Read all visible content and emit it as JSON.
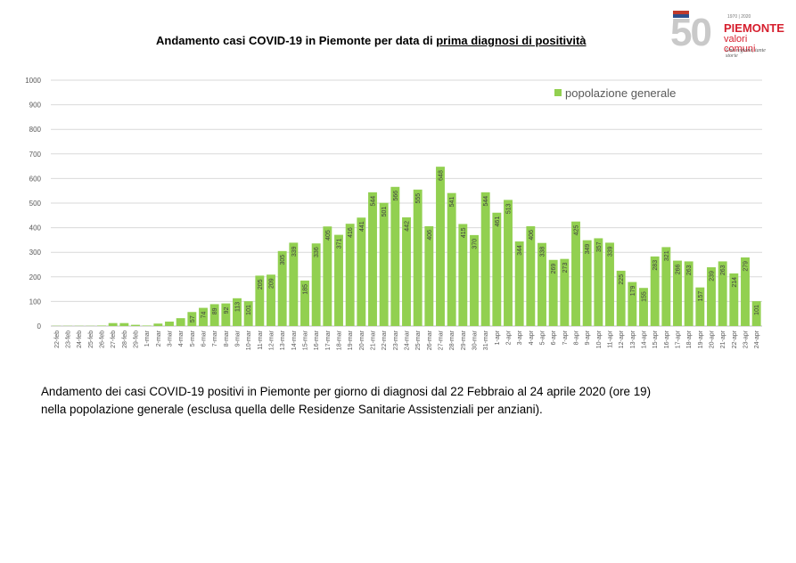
{
  "title_plain": "Andamento casi COVID-19 in Piemonte per data di ",
  "title_underlined": "prima diagnosi di positività",
  "logo": {
    "number": "50",
    "years": "1970 | 2020",
    "brand": "PIEMONTE",
    "brand_sub": "valori comuni",
    "tagline": "Una regione, tante storie"
  },
  "caption_line1": "Andamento dei casi COVID-19 positivi in Piemonte per giorno di diagnosi dal 22 Febbraio al 24 aprile 2020 (ore 19)",
  "caption_line2": "nella popolazione generale (esclusa quella delle Residenze Sanitarie Assistenziali per anziani).",
  "colors": {
    "bar": "#92d050",
    "grid": "#d9d9d9",
    "text": "#595959"
  },
  "chart_data": {
    "type": "bar",
    "ylim": [
      0,
      1000
    ],
    "yticks": [
      0,
      100,
      200,
      300,
      400,
      500,
      600,
      700,
      800,
      900,
      1000
    ],
    "grid": true,
    "legend_position": "top-right",
    "series": [
      {
        "name": "popolazione generale"
      }
    ],
    "categories": [
      "22-feb",
      "23-feb",
      "24-feb",
      "25-feb",
      "26-feb",
      "27-feb",
      "28-feb",
      "29-feb",
      "1-mar",
      "2-mar",
      "3-mar",
      "4-mar",
      "5-mar",
      "6-mar",
      "7-mar",
      "8-mar",
      "9-mar",
      "10-mar",
      "11-mar",
      "12-mar",
      "13-mar",
      "14-mar",
      "15-mar",
      "16-mar",
      "17-mar",
      "18-mar",
      "19-mar",
      "20-mar",
      "21-mar",
      "22-mar",
      "23-mar",
      "24-mar",
      "25-mar",
      "26-mar",
      "27-mar",
      "28-mar",
      "29-mar",
      "30-mar",
      "31-mar",
      "1-apr",
      "2-apr",
      "3-apr",
      "4-apr",
      "5-apr",
      "6-apr",
      "7-apr",
      "8-apr",
      "9-apr",
      "10-apr",
      "11-apr",
      "12-apr",
      "13-apr",
      "14-apr",
      "15-apr",
      "16-apr",
      "17-apr",
      "18-apr",
      "19-apr",
      "20-apr",
      "21-apr",
      "22-apr",
      "23-apr",
      "24-apr"
    ],
    "values": [
      1,
      1,
      1,
      1,
      2,
      12,
      12,
      5,
      2,
      10,
      18,
      32,
      57,
      74,
      89,
      92,
      113,
      101,
      205,
      209,
      305,
      339,
      185,
      336,
      405,
      371,
      416,
      441,
      544,
      501,
      566,
      442,
      555,
      406,
      648,
      541,
      415,
      370,
      544,
      461,
      513,
      344,
      406,
      338,
      269,
      273,
      425,
      349,
      357,
      339,
      225,
      179,
      155,
      283,
      321,
      266,
      263,
      157,
      239,
      263,
      214,
      279,
      101
    ],
    "data_labels": [
      "",
      "",
      "",
      "",
      "",
      "",
      "",
      "",
      "",
      "",
      "",
      "",
      "57",
      "74",
      "89",
      "92",
      "113",
      "101",
      "205",
      "209",
      "305",
      "339",
      "185",
      "336",
      "405",
      "371",
      "416",
      "441",
      "544",
      "501",
      "566",
      "442",
      "555",
      "406",
      "648",
      "541",
      "415",
      "370",
      "544",
      "461",
      "513",
      "344",
      "406",
      "338",
      "269",
      "273",
      "425",
      "349",
      "357",
      "339",
      "225",
      "179",
      "155",
      "283",
      "321",
      "266",
      "263",
      "157",
      "239",
      "263",
      "214",
      "279",
      "101"
    ]
  }
}
